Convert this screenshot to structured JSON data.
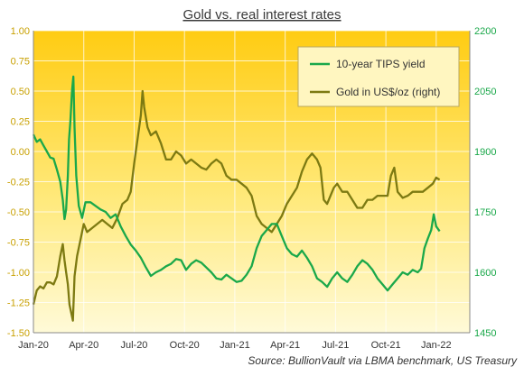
{
  "chart_data": {
    "type": "line",
    "title": "Gold vs. real interest rates",
    "source": "Source: BullionVault via LBMA benchmark, US Treasury",
    "grid": true,
    "legend_position": "top-right",
    "x_ticks": [
      "Jan-20",
      "Apr-20",
      "Jul-20",
      "Oct-20",
      "Jan-21",
      "Apr-21",
      "Jul-21",
      "Oct-21",
      "Jan-22"
    ],
    "x_range": [
      0,
      26
    ],
    "y_left": {
      "ticks": [
        "1.00",
        "0.75",
        "0.50",
        "0.25",
        "0.00",
        "-0.25",
        "-0.50",
        "-0.75",
        "-1.00",
        "-1.25",
        "-1.50"
      ],
      "range": [
        -1.5,
        1.0
      ],
      "color": "#c8a000"
    },
    "y_right": {
      "ticks": [
        "2200",
        "2050",
        "1900",
        "1750",
        "1600",
        "1450"
      ],
      "range": [
        1450,
        2200
      ],
      "color": "#1aa84a"
    },
    "series": [
      {
        "name": "10-year TIPS yield",
        "axis": "left",
        "color": "#1aa84a",
        "points": [
          [
            0.0,
            0.14
          ],
          [
            0.2,
            0.08
          ],
          [
            0.4,
            0.1
          ],
          [
            0.6,
            0.05
          ],
          [
            0.8,
            0.0
          ],
          [
            1.0,
            -0.05
          ],
          [
            1.2,
            -0.06
          ],
          [
            1.4,
            -0.15
          ],
          [
            1.6,
            -0.25
          ],
          [
            1.75,
            -0.4
          ],
          [
            1.85,
            -0.56
          ],
          [
            1.95,
            -0.48
          ],
          [
            2.05,
            -0.2
          ],
          [
            2.12,
            0.1
          ],
          [
            2.2,
            0.25
          ],
          [
            2.3,
            0.5
          ],
          [
            2.38,
            0.62
          ],
          [
            2.45,
            0.2
          ],
          [
            2.55,
            -0.2
          ],
          [
            2.7,
            -0.45
          ],
          [
            2.9,
            -0.55
          ],
          [
            3.1,
            -0.42
          ],
          [
            3.4,
            -0.42
          ],
          [
            3.7,
            -0.45
          ],
          [
            4.0,
            -0.48
          ],
          [
            4.3,
            -0.5
          ],
          [
            4.6,
            -0.55
          ],
          [
            4.9,
            -0.52
          ],
          [
            5.2,
            -0.62
          ],
          [
            5.5,
            -0.7
          ],
          [
            5.8,
            -0.77
          ],
          [
            6.1,
            -0.82
          ],
          [
            6.4,
            -0.88
          ],
          [
            6.7,
            -0.96
          ],
          [
            7.0,
            -1.03
          ],
          [
            7.3,
            -1.0
          ],
          [
            7.6,
            -0.98
          ],
          [
            7.9,
            -0.95
          ],
          [
            8.2,
            -0.93
          ],
          [
            8.5,
            -0.89
          ],
          [
            8.8,
            -0.9
          ],
          [
            9.1,
            -0.98
          ],
          [
            9.4,
            -0.93
          ],
          [
            9.7,
            -0.9
          ],
          [
            10.0,
            -0.92
          ],
          [
            10.3,
            -0.96
          ],
          [
            10.6,
            -1.0
          ],
          [
            10.9,
            -1.05
          ],
          [
            11.2,
            -1.06
          ],
          [
            11.5,
            -1.02
          ],
          [
            11.8,
            -1.05
          ],
          [
            12.1,
            -1.08
          ],
          [
            12.4,
            -1.07
          ],
          [
            12.7,
            -1.02
          ],
          [
            13.0,
            -0.95
          ],
          [
            13.3,
            -0.8
          ],
          [
            13.6,
            -0.7
          ],
          [
            13.9,
            -0.65
          ],
          [
            14.2,
            -0.6
          ],
          [
            14.5,
            -0.6
          ],
          [
            14.8,
            -0.7
          ],
          [
            15.1,
            -0.8
          ],
          [
            15.4,
            -0.85
          ],
          [
            15.7,
            -0.87
          ],
          [
            16.0,
            -0.82
          ],
          [
            16.3,
            -0.88
          ],
          [
            16.6,
            -0.95
          ],
          [
            16.9,
            -1.05
          ],
          [
            17.2,
            -1.08
          ],
          [
            17.5,
            -1.12
          ],
          [
            17.8,
            -1.05
          ],
          [
            18.1,
            -1.0
          ],
          [
            18.4,
            -1.05
          ],
          [
            18.7,
            -1.08
          ],
          [
            19.0,
            -1.02
          ],
          [
            19.3,
            -0.95
          ],
          [
            19.6,
            -0.9
          ],
          [
            19.9,
            -0.93
          ],
          [
            20.2,
            -0.98
          ],
          [
            20.5,
            -1.05
          ],
          [
            20.8,
            -1.1
          ],
          [
            21.1,
            -1.15
          ],
          [
            21.4,
            -1.1
          ],
          [
            21.7,
            -1.05
          ],
          [
            22.0,
            -1.0
          ],
          [
            22.3,
            -1.02
          ],
          [
            22.6,
            -0.98
          ],
          [
            22.9,
            -1.0
          ],
          [
            23.1,
            -0.97
          ],
          [
            23.3,
            -0.8
          ],
          [
            23.5,
            -0.72
          ],
          [
            23.7,
            -0.65
          ],
          [
            23.85,
            -0.52
          ],
          [
            24.0,
            -0.62
          ],
          [
            24.2,
            -0.66
          ]
        ]
      },
      {
        "name": "Gold in US$/oz (right)",
        "axis": "right",
        "color": "#7d7a12",
        "points": [
          [
            0.0,
            1520
          ],
          [
            0.2,
            1555
          ],
          [
            0.4,
            1565
          ],
          [
            0.6,
            1560
          ],
          [
            0.8,
            1575
          ],
          [
            1.0,
            1575
          ],
          [
            1.2,
            1570
          ],
          [
            1.4,
            1590
          ],
          [
            1.6,
            1640
          ],
          [
            1.75,
            1670
          ],
          [
            1.85,
            1630
          ],
          [
            1.95,
            1600
          ],
          [
            2.05,
            1570
          ],
          [
            2.15,
            1520
          ],
          [
            2.25,
            1500
          ],
          [
            2.35,
            1480
          ],
          [
            2.45,
            1590
          ],
          [
            2.6,
            1640
          ],
          [
            2.8,
            1680
          ],
          [
            3.0,
            1720
          ],
          [
            3.2,
            1700
          ],
          [
            3.5,
            1710
          ],
          [
            3.8,
            1720
          ],
          [
            4.1,
            1730
          ],
          [
            4.4,
            1720
          ],
          [
            4.7,
            1710
          ],
          [
            5.0,
            1735
          ],
          [
            5.3,
            1770
          ],
          [
            5.6,
            1780
          ],
          [
            5.8,
            1800
          ],
          [
            6.0,
            1870
          ],
          [
            6.2,
            1930
          ],
          [
            6.4,
            1990
          ],
          [
            6.5,
            2050
          ],
          [
            6.6,
            2010
          ],
          [
            6.8,
            1960
          ],
          [
            7.0,
            1940
          ],
          [
            7.3,
            1950
          ],
          [
            7.6,
            1920
          ],
          [
            7.9,
            1880
          ],
          [
            8.2,
            1880
          ],
          [
            8.5,
            1900
          ],
          [
            8.8,
            1890
          ],
          [
            9.1,
            1870
          ],
          [
            9.4,
            1880
          ],
          [
            9.7,
            1870
          ],
          [
            10.0,
            1860
          ],
          [
            10.3,
            1855
          ],
          [
            10.6,
            1870
          ],
          [
            10.9,
            1880
          ],
          [
            11.2,
            1870
          ],
          [
            11.5,
            1840
          ],
          [
            11.8,
            1830
          ],
          [
            12.1,
            1830
          ],
          [
            12.4,
            1820
          ],
          [
            12.7,
            1810
          ],
          [
            13.0,
            1790
          ],
          [
            13.3,
            1740
          ],
          [
            13.6,
            1720
          ],
          [
            13.9,
            1710
          ],
          [
            14.2,
            1700
          ],
          [
            14.5,
            1720
          ],
          [
            14.8,
            1740
          ],
          [
            15.1,
            1770
          ],
          [
            15.4,
            1790
          ],
          [
            15.7,
            1810
          ],
          [
            16.0,
            1850
          ],
          [
            16.3,
            1880
          ],
          [
            16.6,
            1895
          ],
          [
            16.9,
            1880
          ],
          [
            17.1,
            1860
          ],
          [
            17.3,
            1780
          ],
          [
            17.5,
            1770
          ],
          [
            17.7,
            1790
          ],
          [
            17.9,
            1810
          ],
          [
            18.1,
            1820
          ],
          [
            18.4,
            1800
          ],
          [
            18.7,
            1800
          ],
          [
            19.0,
            1780
          ],
          [
            19.3,
            1760
          ],
          [
            19.6,
            1760
          ],
          [
            19.9,
            1780
          ],
          [
            20.2,
            1780
          ],
          [
            20.5,
            1790
          ],
          [
            20.8,
            1790
          ],
          [
            21.1,
            1790
          ],
          [
            21.3,
            1840
          ],
          [
            21.5,
            1860
          ],
          [
            21.7,
            1800
          ],
          [
            22.0,
            1785
          ],
          [
            22.3,
            1790
          ],
          [
            22.6,
            1800
          ],
          [
            22.9,
            1800
          ],
          [
            23.2,
            1800
          ],
          [
            23.5,
            1810
          ],
          [
            23.8,
            1820
          ],
          [
            24.0,
            1835
          ],
          [
            24.2,
            1830
          ]
        ]
      }
    ]
  }
}
